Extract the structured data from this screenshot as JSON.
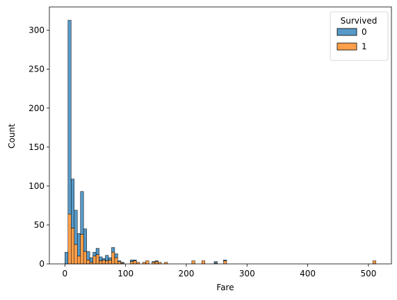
{
  "chart_data": {
    "type": "bar",
    "stacked": true,
    "xlabel": "Fare",
    "ylabel": "Count",
    "xlim": [
      -25.6,
      537.9
    ],
    "ylim": [
      0,
      330
    ],
    "xticks": [
      0,
      100,
      200,
      300,
      400,
      500
    ],
    "yticks": [
      0,
      50,
      100,
      150,
      200,
      250,
      300
    ],
    "bin_width": 5.12,
    "grid": false,
    "legend": {
      "title": "Survived",
      "placement": "top-right",
      "entries": [
        "0",
        "1"
      ]
    },
    "series": [
      {
        "name": "0",
        "color": "#1f77b4",
        "bins": [
          [
            0,
            15
          ],
          [
            5.12,
            249
          ],
          [
            10.25,
            63
          ],
          [
            15.37,
            44
          ],
          [
            20.49,
            29
          ],
          [
            25.62,
            55
          ],
          [
            30.74,
            29
          ],
          [
            35.86,
            11
          ],
          [
            40.98,
            6
          ],
          [
            46.11,
            5
          ],
          [
            51.23,
            8
          ],
          [
            56.35,
            5
          ],
          [
            61.48,
            2
          ],
          [
            66.6,
            7
          ],
          [
            71.72,
            3
          ],
          [
            76.84,
            6
          ],
          [
            81.97,
            5
          ],
          [
            87.09,
            1
          ],
          [
            92.21,
            1
          ],
          [
            107.58,
            2
          ],
          [
            112.71,
            1
          ],
          [
            143.45,
            1
          ],
          [
            148.57,
            1
          ],
          [
            245.87,
            2
          ],
          [
            261.24,
            1
          ]
        ]
      },
      {
        "name": "1",
        "color": "#ff7f0e",
        "bins": [
          [
            0,
            0
          ],
          [
            5.12,
            64
          ],
          [
            10.25,
            46
          ],
          [
            15.37,
            25
          ],
          [
            20.49,
            10
          ],
          [
            25.62,
            38
          ],
          [
            30.74,
            16
          ],
          [
            35.86,
            5
          ],
          [
            40.98,
            2
          ],
          [
            46.11,
            10
          ],
          [
            51.23,
            12
          ],
          [
            56.35,
            4
          ],
          [
            61.48,
            5
          ],
          [
            66.6,
            4
          ],
          [
            71.72,
            5
          ],
          [
            76.84,
            15
          ],
          [
            81.97,
            8
          ],
          [
            87.09,
            3
          ],
          [
            92.21,
            1
          ],
          [
            107.58,
            3
          ],
          [
            112.71,
            4
          ],
          [
            117.83,
            2
          ],
          [
            128.07,
            2
          ],
          [
            133.2,
            4
          ],
          [
            143.45,
            2
          ],
          [
            148.57,
            3
          ],
          [
            153.69,
            2
          ],
          [
            163.94,
            2
          ],
          [
            209.05,
            4
          ],
          [
            225.45,
            4
          ],
          [
            245.87,
            1
          ],
          [
            261.24,
            4
          ],
          [
            507.2,
            4
          ]
        ]
      }
    ]
  }
}
